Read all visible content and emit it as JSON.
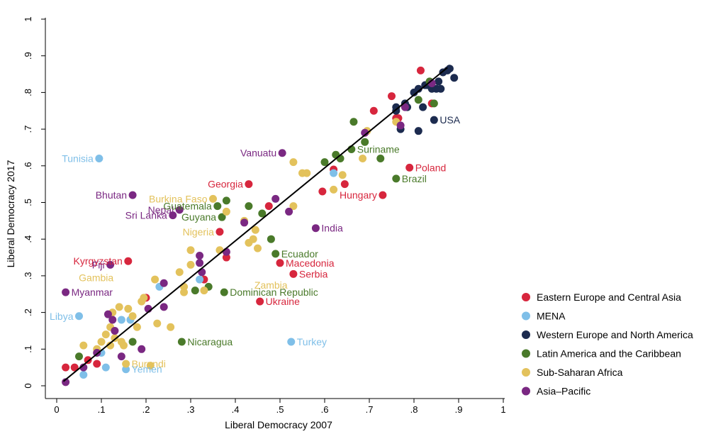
{
  "chart_data": {
    "type": "scatter",
    "xlabel": "Liberal Democracy 2007",
    "ylabel": "Liberal Democracy 2017",
    "xlim": [
      0,
      1
    ],
    "ylim": [
      0,
      1
    ],
    "xticks": [
      "0",
      ".1",
      ".2",
      ".3",
      ".4",
      ".5",
      ".6",
      ".7",
      ".8",
      ".9",
      "1"
    ],
    "yticks": [
      "0",
      ".1",
      ".2",
      ".3",
      ".4",
      ".5",
      ".6",
      ".7",
      ".8",
      ".9",
      "1"
    ],
    "grid": false,
    "legend_position": "bottom-right",
    "fit_line": {
      "x": [
        0.015,
        0.875
      ],
      "y": [
        0.012,
        0.868
      ]
    },
    "series": [
      {
        "name": "Eastern Europe and Central Asia",
        "color": "#d7263d",
        "points": [
          [
            0.02,
            0.05
          ],
          [
            0.04,
            0.05
          ],
          [
            0.07,
            0.07
          ],
          [
            0.09,
            0.06
          ],
          [
            0.16,
            0.34
          ],
          [
            0.2,
            0.24
          ],
          [
            0.33,
            0.29
          ],
          [
            0.365,
            0.42
          ],
          [
            0.38,
            0.35
          ],
          [
            0.43,
            0.55
          ],
          [
            0.455,
            0.23
          ],
          [
            0.475,
            0.49
          ],
          [
            0.5,
            0.335
          ],
          [
            0.53,
            0.305
          ],
          [
            0.595,
            0.53
          ],
          [
            0.62,
            0.59
          ],
          [
            0.645,
            0.55
          ],
          [
            0.71,
            0.75
          ],
          [
            0.73,
            0.52
          ],
          [
            0.75,
            0.79
          ],
          [
            0.76,
            0.73
          ],
          [
            0.765,
            0.73
          ],
          [
            0.79,
            0.595
          ],
          [
            0.815,
            0.86
          ],
          [
            0.84,
            0.77
          ]
        ]
      },
      {
        "name": "MENA",
        "color": "#7fbfe8",
        "points": [
          [
            0.05,
            0.19
          ],
          [
            0.06,
            0.03
          ],
          [
            0.095,
            0.62
          ],
          [
            0.1,
            0.09
          ],
          [
            0.11,
            0.05
          ],
          [
            0.145,
            0.18
          ],
          [
            0.155,
            0.045
          ],
          [
            0.165,
            0.18
          ],
          [
            0.23,
            0.27
          ],
          [
            0.32,
            0.29
          ],
          [
            0.525,
            0.12
          ],
          [
            0.62,
            0.58
          ]
        ]
      },
      {
        "name": "Western Europe and North America",
        "color": "#1c2b4f",
        "points": [
          [
            0.76,
            0.75
          ],
          [
            0.76,
            0.76
          ],
          [
            0.77,
            0.7
          ],
          [
            0.78,
            0.77
          ],
          [
            0.785,
            0.76
          ],
          [
            0.8,
            0.8
          ],
          [
            0.81,
            0.81
          ],
          [
            0.81,
            0.695
          ],
          [
            0.82,
            0.76
          ],
          [
            0.825,
            0.82
          ],
          [
            0.83,
            0.82
          ],
          [
            0.84,
            0.81
          ],
          [
            0.845,
            0.725
          ],
          [
            0.85,
            0.81
          ],
          [
            0.855,
            0.83
          ],
          [
            0.86,
            0.81
          ],
          [
            0.865,
            0.855
          ],
          [
            0.875,
            0.86
          ],
          [
            0.88,
            0.865
          ],
          [
            0.89,
            0.84
          ]
        ]
      },
      {
        "name": "Latin America and the Caribbean",
        "color": "#4a7a2a",
        "points": [
          [
            0.05,
            0.08
          ],
          [
            0.17,
            0.12
          ],
          [
            0.28,
            0.12
          ],
          [
            0.31,
            0.26
          ],
          [
            0.34,
            0.27
          ],
          [
            0.36,
            0.49
          ],
          [
            0.37,
            0.46
          ],
          [
            0.375,
            0.255
          ],
          [
            0.38,
            0.505
          ],
          [
            0.43,
            0.49
          ],
          [
            0.46,
            0.47
          ],
          [
            0.48,
            0.4
          ],
          [
            0.49,
            0.36
          ],
          [
            0.6,
            0.61
          ],
          [
            0.625,
            0.63
          ],
          [
            0.635,
            0.62
          ],
          [
            0.66,
            0.645
          ],
          [
            0.665,
            0.72
          ],
          [
            0.69,
            0.665
          ],
          [
            0.725,
            0.62
          ],
          [
            0.76,
            0.565
          ],
          [
            0.81,
            0.78
          ],
          [
            0.835,
            0.83
          ],
          [
            0.845,
            0.77
          ]
        ]
      },
      {
        "name": "Sub-Saharan Africa",
        "color": "#e3c25c",
        "points": [
          [
            0.06,
            0.11
          ],
          [
            0.09,
            0.1
          ],
          [
            0.1,
            0.12
          ],
          [
            0.11,
            0.14
          ],
          [
            0.12,
            0.11
          ],
          [
            0.12,
            0.16
          ],
          [
            0.125,
            0.2
          ],
          [
            0.13,
            0.13
          ],
          [
            0.14,
            0.215
          ],
          [
            0.145,
            0.12
          ],
          [
            0.15,
            0.11
          ],
          [
            0.155,
            0.06
          ],
          [
            0.16,
            0.21
          ],
          [
            0.17,
            0.19
          ],
          [
            0.18,
            0.16
          ],
          [
            0.19,
            0.23
          ],
          [
            0.195,
            0.24
          ],
          [
            0.21,
            0.055
          ],
          [
            0.22,
            0.29
          ],
          [
            0.225,
            0.17
          ],
          [
            0.255,
            0.16
          ],
          [
            0.275,
            0.31
          ],
          [
            0.285,
            0.27
          ],
          [
            0.285,
            0.255
          ],
          [
            0.3,
            0.37
          ],
          [
            0.3,
            0.33
          ],
          [
            0.33,
            0.26
          ],
          [
            0.35,
            0.51
          ],
          [
            0.365,
            0.37
          ],
          [
            0.38,
            0.475
          ],
          [
            0.42,
            0.45
          ],
          [
            0.43,
            0.39
          ],
          [
            0.44,
            0.4
          ],
          [
            0.445,
            0.425
          ],
          [
            0.45,
            0.375
          ],
          [
            0.53,
            0.61
          ],
          [
            0.53,
            0.49
          ],
          [
            0.55,
            0.58
          ],
          [
            0.56,
            0.58
          ],
          [
            0.62,
            0.535
          ],
          [
            0.64,
            0.575
          ],
          [
            0.685,
            0.62
          ],
          [
            0.695,
            0.695
          ],
          [
            0.76,
            0.72
          ]
        ]
      },
      {
        "name": "Asia–Pacific",
        "color": "#7a2882",
        "points": [
          [
            0.02,
            0.01
          ],
          [
            0.02,
            0.255
          ],
          [
            0.06,
            0.05
          ],
          [
            0.09,
            0.09
          ],
          [
            0.115,
            0.195
          ],
          [
            0.12,
            0.33
          ],
          [
            0.125,
            0.18
          ],
          [
            0.13,
            0.15
          ],
          [
            0.145,
            0.08
          ],
          [
            0.17,
            0.52
          ],
          [
            0.19,
            0.1
          ],
          [
            0.205,
            0.21
          ],
          [
            0.24,
            0.28
          ],
          [
            0.24,
            0.215
          ],
          [
            0.26,
            0.465
          ],
          [
            0.275,
            0.48
          ],
          [
            0.32,
            0.355
          ],
          [
            0.32,
            0.335
          ],
          [
            0.325,
            0.31
          ],
          [
            0.38,
            0.365
          ],
          [
            0.42,
            0.445
          ],
          [
            0.49,
            0.51
          ],
          [
            0.505,
            0.635
          ],
          [
            0.52,
            0.475
          ],
          [
            0.58,
            0.43
          ],
          [
            0.69,
            0.69
          ],
          [
            0.77,
            0.71
          ],
          [
            0.78,
            0.76
          ],
          [
            0.84,
            0.825
          ]
        ]
      }
    ],
    "annotations": [
      {
        "text": "Tunisia",
        "x": 0.095,
        "y": 0.62,
        "color": "#7fbfe8",
        "side": "left"
      },
      {
        "text": "Bhutan",
        "x": 0.17,
        "y": 0.52,
        "color": "#7a2882",
        "side": "left"
      },
      {
        "text": "Sri Lanka",
        "x": 0.26,
        "y": 0.465,
        "color": "#7a2882",
        "side": "left"
      },
      {
        "text": "Nepal",
        "x": 0.275,
        "y": 0.48,
        "color": "#7a2882",
        "side": "left"
      },
      {
        "text": "Burkina Faso",
        "x": 0.35,
        "y": 0.51,
        "color": "#e3c25c",
        "side": "left"
      },
      {
        "text": "Guatemala",
        "x": 0.36,
        "y": 0.49,
        "color": "#4a7a2a",
        "side": "left"
      },
      {
        "text": "Guyana",
        "x": 0.37,
        "y": 0.46,
        "color": "#4a7a2a",
        "side": "left"
      },
      {
        "text": "Nigeria",
        "x": 0.365,
        "y": 0.42,
        "color": "#e3c25c",
        "side": "left"
      },
      {
        "text": "Georgia",
        "x": 0.43,
        "y": 0.55,
        "color": "#d7263d",
        "side": "left"
      },
      {
        "text": "Vanuatu",
        "x": 0.505,
        "y": 0.635,
        "color": "#7a2882",
        "side": "left"
      },
      {
        "text": "Kyrgyzstan",
        "x": 0.16,
        "y": 0.34,
        "color": "#d7263d",
        "side": "left"
      },
      {
        "text": "Fiji",
        "x": 0.12,
        "y": 0.33,
        "color": "#7a2882",
        "side": "left"
      },
      {
        "text": "Gambia",
        "x": 0.14,
        "y": 0.295,
        "color": "#e3c25c",
        "side": "left"
      },
      {
        "text": "Myanmar",
        "x": 0.02,
        "y": 0.255,
        "color": "#7a2882",
        "side": "right"
      },
      {
        "text": "Libya",
        "x": 0.05,
        "y": 0.19,
        "color": "#7fbfe8",
        "side": "left"
      },
      {
        "text": "Burundi",
        "x": 0.155,
        "y": 0.06,
        "color": "#e3c25c",
        "side": "right"
      },
      {
        "text": "Yemen",
        "x": 0.155,
        "y": 0.045,
        "color": "#7fbfe8",
        "side": "right"
      },
      {
        "text": "Nicaragua",
        "x": 0.28,
        "y": 0.12,
        "color": "#4a7a2a",
        "side": "right"
      },
      {
        "text": "Zambia",
        "x": 0.43,
        "y": 0.275,
        "color": "#e3c25c",
        "side": "right"
      },
      {
        "text": "Dominican Republic",
        "x": 0.375,
        "y": 0.255,
        "color": "#4a7a2a",
        "side": "right"
      },
      {
        "text": "Ukraine",
        "x": 0.455,
        "y": 0.23,
        "color": "#d7263d",
        "side": "right"
      },
      {
        "text": "Serbia",
        "x": 0.53,
        "y": 0.305,
        "color": "#d7263d",
        "side": "right"
      },
      {
        "text": "Macedonia",
        "x": 0.5,
        "y": 0.335,
        "color": "#d7263d",
        "side": "right"
      },
      {
        "text": "Ecuador",
        "x": 0.49,
        "y": 0.36,
        "color": "#4a7a2a",
        "side": "right"
      },
      {
        "text": "India",
        "x": 0.58,
        "y": 0.43,
        "color": "#7a2882",
        "side": "right"
      },
      {
        "text": "Turkey",
        "x": 0.525,
        "y": 0.12,
        "color": "#7fbfe8",
        "side": "right"
      },
      {
        "text": "Hungary",
        "x": 0.73,
        "y": 0.52,
        "color": "#d7263d",
        "side": "left"
      },
      {
        "text": "Brazil",
        "x": 0.76,
        "y": 0.565,
        "color": "#4a7a2a",
        "side": "right"
      },
      {
        "text": "Poland",
        "x": 0.79,
        "y": 0.595,
        "color": "#d7263d",
        "side": "right"
      },
      {
        "text": "Suriname",
        "x": 0.66,
        "y": 0.645,
        "color": "#4a7a2a",
        "side": "right"
      },
      {
        "text": "USA",
        "x": 0.845,
        "y": 0.725,
        "color": "#1c2b4f",
        "side": "right"
      }
    ]
  }
}
